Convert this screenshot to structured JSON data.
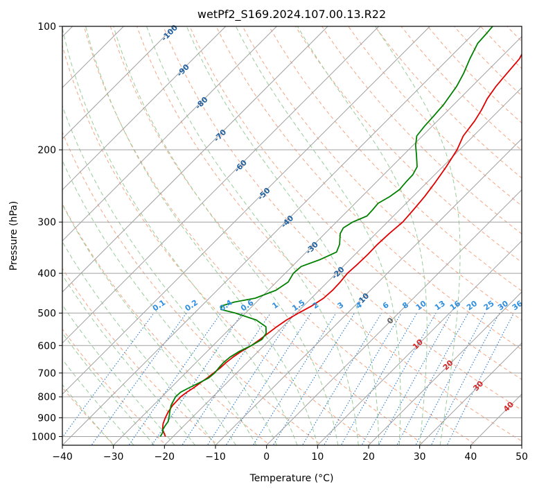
{
  "chart_data": {
    "type": "line",
    "title": "wetPf2_S169.2024.107.00.13.R22",
    "xlabel": "Temperature (°C)",
    "ylabel": "Pressure (hPa)",
    "xlim": [
      -40,
      50
    ],
    "ylim": [
      1050,
      100
    ],
    "y_scale": "log",
    "skew": true,
    "x_ticks": [
      -40,
      -30,
      -20,
      -10,
      0,
      10,
      20,
      30,
      40,
      50
    ],
    "y_ticks": [
      1000,
      900,
      800,
      700,
      600,
      500,
      400,
      300,
      200,
      100
    ],
    "grid": true,
    "series": [
      {
        "name": "",
        "color": "#e00000",
        "points": [
          [
            1000,
            -21.5
          ],
          [
            980,
            -22.5
          ],
          [
            960,
            -23.5
          ],
          [
            930,
            -24.5
          ],
          [
            900,
            -25.2
          ],
          [
            870,
            -25.8
          ],
          [
            840,
            -26.2
          ],
          [
            800,
            -26.3
          ],
          [
            780,
            -26.0
          ],
          [
            760,
            -25.5
          ],
          [
            740,
            -25.2
          ],
          [
            720,
            -24.8
          ],
          [
            700,
            -24.5
          ],
          [
            680,
            -24.2
          ],
          [
            660,
            -24.1
          ],
          [
            640,
            -23.8
          ],
          [
            620,
            -23.3
          ],
          [
            600,
            -22.5
          ],
          [
            580,
            -22.0
          ],
          [
            560,
            -21.6
          ],
          [
            540,
            -21.2
          ],
          [
            520,
            -20.6
          ],
          [
            500,
            -19.6
          ],
          [
            480,
            -18.4
          ],
          [
            460,
            -17.6
          ],
          [
            440,
            -17.4
          ],
          [
            420,
            -17.5
          ],
          [
            400,
            -17.8
          ],
          [
            380,
            -17.6
          ],
          [
            360,
            -17.5
          ],
          [
            340,
            -17.6
          ],
          [
            320,
            -17.4
          ],
          [
            300,
            -17.0
          ],
          [
            280,
            -17.3
          ],
          [
            260,
            -17.7
          ],
          [
            240,
            -18.4
          ],
          [
            220,
            -19.3
          ],
          [
            200,
            -20.5
          ],
          [
            185,
            -22.0
          ],
          [
            170,
            -22.7
          ],
          [
            160,
            -23.5
          ],
          [
            150,
            -24.6
          ],
          [
            140,
            -25.3
          ],
          [
            130,
            -25.7
          ],
          [
            120,
            -26.1
          ],
          [
            110,
            -27.5
          ],
          [
            105,
            -28.4
          ],
          [
            100,
            -28.5
          ]
        ]
      },
      {
        "name": "",
        "color": "#008000",
        "points": [
          [
            1000,
            -22.5
          ],
          [
            980,
            -22.8
          ],
          [
            960,
            -23.4
          ],
          [
            940,
            -23.7
          ],
          [
            920,
            -23.9
          ],
          [
            900,
            -24.5
          ],
          [
            870,
            -25.5
          ],
          [
            840,
            -26.5
          ],
          [
            800,
            -27.3
          ],
          [
            780,
            -27.2
          ],
          [
            760,
            -26.4
          ],
          [
            740,
            -25.4
          ],
          [
            720,
            -24.5
          ],
          [
            700,
            -24.3
          ],
          [
            680,
            -24.5
          ],
          [
            660,
            -24.6
          ],
          [
            640,
            -24.4
          ],
          [
            620,
            -23.7
          ],
          [
            600,
            -22.5
          ],
          [
            580,
            -21.6
          ],
          [
            560,
            -22.0
          ],
          [
            540,
            -23.3
          ],
          [
            520,
            -26.5
          ],
          [
            500,
            -32.0
          ],
          [
            490,
            -35.5
          ],
          [
            480,
            -36.0
          ],
          [
            470,
            -34.3
          ],
          [
            460,
            -31.0
          ],
          [
            440,
            -28.5
          ],
          [
            420,
            -27.7
          ],
          [
            400,
            -28.4
          ],
          [
            385,
            -28.2
          ],
          [
            370,
            -25.8
          ],
          [
            355,
            -24.1
          ],
          [
            340,
            -25.0
          ],
          [
            320,
            -27.0
          ],
          [
            310,
            -27.5
          ],
          [
            300,
            -26.8
          ],
          [
            290,
            -25.2
          ],
          [
            280,
            -25.3
          ],
          [
            270,
            -25.5
          ],
          [
            260,
            -24.5
          ],
          [
            250,
            -24.0
          ],
          [
            240,
            -24.2
          ],
          [
            230,
            -24.3
          ],
          [
            220,
            -25.0
          ],
          [
            205,
            -27.6
          ],
          [
            195,
            -29.5
          ],
          [
            185,
            -31.1
          ],
          [
            175,
            -31.5
          ],
          [
            165,
            -31.7
          ],
          [
            155,
            -32.0
          ],
          [
            140,
            -33.0
          ],
          [
            130,
            -34.2
          ],
          [
            120,
            -35.8
          ],
          [
            110,
            -37.3
          ],
          [
            104,
            -37.5
          ],
          [
            100,
            -37.7
          ]
        ]
      }
    ],
    "isotherms": [
      -100,
      -90,
      -80,
      -70,
      -60,
      -50,
      -40,
      -30,
      -20,
      -10,
      0,
      10,
      20,
      30,
      40
    ],
    "mixing_ratio_lines": [
      0.1,
      0.2,
      0.4,
      0.6,
      1,
      1.5,
      2,
      3,
      4,
      6,
      8,
      10,
      13,
      16,
      20,
      25,
      30,
      36
    ],
    "labels": {
      "isotherm_labels": [
        "-100",
        "-90",
        "-80",
        "-70",
        "-60",
        "-50",
        "-40",
        "-30",
        "-20",
        "-10"
      ],
      "mixing_labels": [
        "0.1",
        "0.2",
        "0.4",
        "0.6",
        "1",
        "1.5",
        "2",
        "3",
        "4",
        "6",
        "8",
        "10",
        "13",
        "16",
        "20",
        "25",
        "30",
        "36"
      ],
      "warm_labels": [
        "0",
        "10",
        "20",
        "30",
        "40"
      ]
    },
    "colors": {
      "isotherm": "#a0a0a0",
      "isobar": "#a0a0a0",
      "dry_adiabat": "#f4a582",
      "moist_adiabat": "#99cc99",
      "mixing": "#1f77d0",
      "isotherm_label": "#1f5f9f",
      "warm_label": "#d62728",
      "zero_label": "#606060",
      "mixing_label": "#2e8fe0"
    }
  }
}
